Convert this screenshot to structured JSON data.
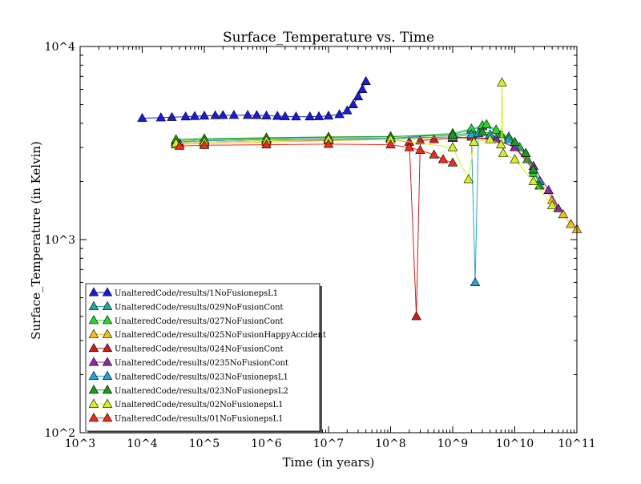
{
  "chart_data": {
    "type": "line",
    "title": "Surface_Temperature vs. Time",
    "xlabel": "Time (in years)",
    "ylabel": "Surface_Temperature (in Kelvin)",
    "x_scale": "log",
    "y_scale": "log",
    "xlim": [
      1000,
      100000000000
    ],
    "ylim": [
      100,
      10000
    ],
    "x_ticks": [
      {
        "value": 1000,
        "label": "10^3"
      },
      {
        "value": 10000,
        "label": "10^4"
      },
      {
        "value": 100000,
        "label": "10^5"
      },
      {
        "value": 1000000,
        "label": "10^6"
      },
      {
        "value": 10000000,
        "label": "10^7"
      },
      {
        "value": 100000000,
        "label": "10^8"
      },
      {
        "value": 1000000000,
        "label": "10^9"
      },
      {
        "value": 10000000000,
        "label": "10^10"
      },
      {
        "value": 100000000000,
        "label": "10^11"
      }
    ],
    "y_ticks": [
      {
        "value": 100,
        "label": "10^2"
      },
      {
        "value": 1000,
        "label": "10^3"
      },
      {
        "value": 10000,
        "label": "10^4"
      }
    ],
    "grid": false,
    "legend_position": "lower-left",
    "marker": "triangle",
    "series": [
      {
        "name": "UnalteredCode/results/1NoFusionepsL1",
        "color": "#1c1cd4",
        "x": [
          10000,
          20000,
          30000,
          50000,
          70000,
          100000,
          150000,
          200000,
          300000,
          500000,
          700000,
          1000000,
          1500000,
          2000000,
          3000000,
          5000000,
          7000000,
          10000000,
          15000000,
          20000000,
          25000000,
          30000000,
          35000000,
          40000000
        ],
        "y": [
          4250,
          4280,
          4300,
          4330,
          4350,
          4370,
          4390,
          4400,
          4410,
          4410,
          4400,
          4380,
          4360,
          4340,
          4330,
          4330,
          4340,
          4370,
          4450,
          4650,
          5000,
          5500,
          6000,
          6600
        ]
      },
      {
        "name": "UnalteredCode/results/029NoFusionCont",
        "color": "#20a8a0",
        "x": [
          35000,
          100000,
          1000000,
          10000000,
          100000000,
          1000000000,
          2000000000,
          3000000000,
          5000000000,
          8000000000,
          12000000000,
          16000000000,
          20000000000
        ],
        "y": [
          3200,
          3250,
          3300,
          3320,
          3350,
          3500,
          3700,
          3850,
          3700,
          3400,
          3000,
          2600,
          2200
        ]
      },
      {
        "name": "UnalteredCode/results/027NoFusionCont",
        "color": "#2ed42e",
        "x": [
          35000,
          100000,
          1000000,
          10000000,
          100000000,
          1000000000,
          2000000000,
          3000000000,
          3500000000,
          5000000000,
          8000000000,
          12000000000,
          16000000000,
          20000000000
        ],
        "y": [
          3250,
          3300,
          3350,
          3380,
          3400,
          3550,
          3750,
          3900,
          3950,
          3700,
          3400,
          3000,
          2600,
          2200
        ]
      },
      {
        "name": "UnalteredCode/results/025NoFusionHappyAccident",
        "color": "#f0c020",
        "x": [
          35000,
          100000,
          1000000,
          10000000,
          100000000,
          1000000000,
          5000000000,
          10000000000,
          20000000000,
          40000000000,
          60000000000,
          80000000000,
          100000000000
        ],
        "y": [
          3100,
          3150,
          3200,
          3250,
          3300,
          3350,
          3300,
          3000,
          2300,
          1600,
          1350,
          1200,
          1130
        ]
      },
      {
        "name": "UnalteredCode/results/024NoFusionCont",
        "color": "#c82020",
        "x": [
          40000,
          100000,
          1000000,
          10000000,
          100000000,
          200000000,
          260000000,
          300000000,
          500000000,
          1000000000,
          2000000000,
          5000000000,
          10000000000,
          20000000000
        ],
        "y": [
          3150,
          3200,
          3250,
          3280,
          3300,
          3200,
          400,
          3250,
          3300,
          3350,
          3400,
          3300,
          3000,
          2300
        ]
      },
      {
        "name": "UnalteredCode/results/0235NoFusionCont",
        "color": "#8a2ba0",
        "x": [
          35000,
          100000,
          1000000,
          10000000,
          100000000,
          1000000000,
          5000000000,
          10000000000,
          20000000000,
          35000000000,
          50000000000
        ],
        "y": [
          3200,
          3250,
          3300,
          3330,
          3350,
          3400,
          3300,
          3000,
          2400,
          1800,
          1450
        ]
      },
      {
        "name": "UnalteredCode/results/023NoFusionepsL1",
        "color": "#2aa0d8",
        "x": [
          35000,
          100000,
          1000000,
          10000000,
          100000000,
          1000000000,
          2000000000,
          2300000000,
          2600000000,
          4000000000,
          8000000000,
          15000000000,
          25000000000
        ],
        "y": [
          3200,
          3250,
          3300,
          3330,
          3350,
          3400,
          3500,
          600,
          3550,
          3500,
          3300,
          2800,
          2000
        ]
      },
      {
        "name": "UnalteredCode/results/023NoFusionepsL2",
        "color": "#1f9a1f",
        "x": [
          35000,
          100000,
          1000000,
          10000000,
          100000000,
          1000000000,
          3000000000,
          6000000000,
          10000000000,
          15000000000,
          20000000000,
          25000000000
        ],
        "y": [
          3300,
          3330,
          3370,
          3400,
          3420,
          3480,
          3600,
          3500,
          3200,
          2800,
          2300,
          1900
        ]
      },
      {
        "name": "UnalteredCode/results/02NoFusionepsL1",
        "color": "#d4f020",
        "x": [
          35000,
          100000,
          1000000,
          10000000,
          100000000,
          1000000000,
          1800000000,
          2200000000,
          4000000000,
          6000000000,
          6200000000,
          6500000000,
          10000000000,
          20000000000,
          40000000000
        ],
        "y": [
          3150,
          3200,
          3250,
          3300,
          3300,
          3000,
          2050,
          3200,
          3300,
          3100,
          6500,
          2800,
          2600,
          2000,
          1500
        ]
      },
      {
        "name": "UnalteredCode/results/01NoFusionepsL1",
        "color": "#f02a1c",
        "x": [
          40000,
          100000,
          1000000,
          10000000,
          100000000,
          200000000,
          300000000,
          500000000,
          700000000,
          1000000000
        ],
        "y": [
          3050,
          3080,
          3100,
          3120,
          3100,
          3000,
          2900,
          2750,
          2600,
          2500
        ]
      }
    ]
  }
}
